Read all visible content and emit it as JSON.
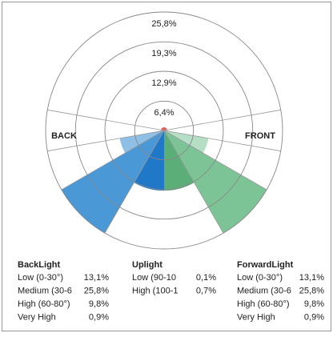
{
  "chart_data": {
    "type": "polar",
    "rlim": [
      0,
      25.8
    ],
    "rticks": [
      {
        "value": 6.4,
        "label": "6,4%"
      },
      {
        "value": 12.9,
        "label": "12,9%"
      },
      {
        "value": 19.3,
        "label": "19,3%"
      },
      {
        "value": 25.8,
        "label": "25,8%"
      }
    ],
    "side_labels": [
      "BACK",
      "FRONT"
    ],
    "series": [
      {
        "name": "BackLight",
        "side": "back",
        "categories": [
          "Low (0-30°)",
          "Medium (30-6",
          "High (60-80°)",
          "Very High"
        ],
        "angle_ranges": [
          [
            0,
            30
          ],
          [
            30,
            60
          ],
          [
            60,
            80
          ],
          [
            80,
            90
          ]
        ],
        "values": [
          13.1,
          25.8,
          9.8,
          0.9
        ],
        "value_labels": [
          "13,1%",
          "25,8%",
          "9,8%",
          "0,9%"
        ],
        "colors": [
          "#1f78c8",
          "#4a98d6",
          "#8fbfe4",
          "#c5ddf1"
        ]
      },
      {
        "name": "Uplight",
        "side": "both",
        "categories": [
          "Low (90-10",
          "High (100-1"
        ],
        "angle_ranges": [
          [
            90,
            100
          ],
          [
            100,
            180
          ]
        ],
        "values": [
          0.1,
          0.7
        ],
        "value_labels": [
          "0,1%",
          "0,7%"
        ],
        "colors": [
          "#e06060",
          "#e06060"
        ]
      },
      {
        "name": "ForwardLight",
        "side": "front",
        "categories": [
          "Low (0-30°)",
          "Medium (30-6",
          "High (60-80°)",
          "Very High"
        ],
        "angle_ranges": [
          [
            0,
            30
          ],
          [
            30,
            60
          ],
          [
            60,
            80
          ],
          [
            80,
            90
          ]
        ],
        "values": [
          13.1,
          25.8,
          9.8,
          0.9
        ],
        "value_labels": [
          "13,1%",
          "25,8%",
          "9,8%",
          "0,9%"
        ],
        "colors": [
          "#5cae78",
          "#7cc496",
          "#b5dfc4",
          "#dcefe2"
        ]
      }
    ]
  }
}
